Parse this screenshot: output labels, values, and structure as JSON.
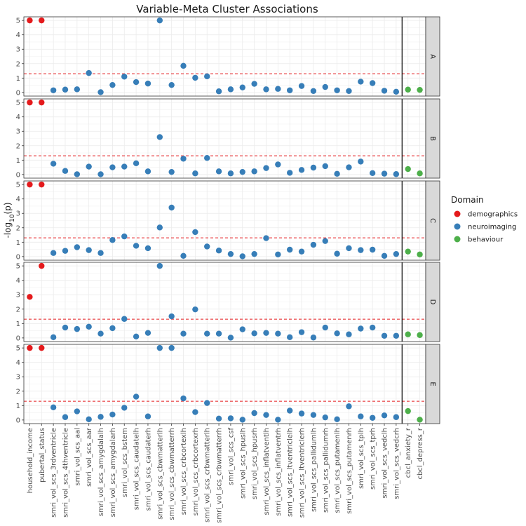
{
  "chart_data": {
    "type": "scatter",
    "title": "Variable-Meta Cluster Associations",
    "xlabel": "",
    "ylabel": "-log10(p)",
    "ylim": [
      0,
      5
    ],
    "yticks": [
      0,
      1,
      2,
      3,
      4,
      5
    ],
    "threshold": 1.3,
    "threshold_color": "#e41a1c",
    "grid": true,
    "legend": {
      "title": "Domain",
      "placement": "right",
      "entries": [
        {
          "label": "demographics",
          "color": "#e41a1c"
        },
        {
          "label": "neuroimaging",
          "color": "#377eb8"
        },
        {
          "label": "behaviour",
          "color": "#4daf4a"
        }
      ]
    },
    "divider_after_index": 32,
    "variables": [
      "household_income",
      "pubertal_status",
      "smri_vol_scs_3rdventricle",
      "smri_vol_scs_4thventricle",
      "smri_vol_scs_aal",
      "smri_vol_scs_aar",
      "smri_vol_scs_amygdalalh",
      "smri_vol_scs_amygdalarh",
      "smri_vol_scs_bstem",
      "smri_vol_scs_caudatelh",
      "smri_vol_scs_caudaterh",
      "smri_vol_scs_cbwmatterlh",
      "smri_vol_scs_cbwmatterrh",
      "smri_vol_scs_crbcortexlh",
      "smri_vol_scs_crbcortexrh",
      "smri_vol_scs_crbwmatterlh",
      "smri_vol_scs_crbwmatterrh",
      "smri_vol_scs_csf",
      "smri_vol_scs_hpuslh",
      "smri_vol_scs_hpusrh",
      "smri_vol_scs_inflatventlh",
      "smri_vol_scs_inflatventrh",
      "smri_vol_scs_ltventriclelh",
      "smri_vol_scs_ltventriclerh",
      "smri_vol_scs_pallidumlh",
      "smri_vol_scs_pallidumrh",
      "smri_vol_scs_putamenlh",
      "smri_vol_scs_putamenrh",
      "smri_vol_scs_tplh",
      "smri_vol_scs_tprh",
      "smri_vol_scs_vedclh",
      "smri_vol_scs_vedcrh",
      "cbcl_anxiety_r",
      "cbcl_depress_r"
    ],
    "domains": [
      "demographics",
      "demographics",
      "neuroimaging",
      "neuroimaging",
      "neuroimaging",
      "neuroimaging",
      "neuroimaging",
      "neuroimaging",
      "neuroimaging",
      "neuroimaging",
      "neuroimaging",
      "neuroimaging",
      "neuroimaging",
      "neuroimaging",
      "neuroimaging",
      "neuroimaging",
      "neuroimaging",
      "neuroimaging",
      "neuroimaging",
      "neuroimaging",
      "neuroimaging",
      "neuroimaging",
      "neuroimaging",
      "neuroimaging",
      "neuroimaging",
      "neuroimaging",
      "neuroimaging",
      "neuroimaging",
      "neuroimaging",
      "neuroimaging",
      "neuroimaging",
      "neuroimaging",
      "behaviour",
      "behaviour"
    ],
    "panels": [
      {
        "name": "A",
        "values": [
          5,
          5,
          0.15,
          0.2,
          0.22,
          1.35,
          0.02,
          0.52,
          1.1,
          0.72,
          0.62,
          5,
          0.52,
          1.85,
          1.02,
          1.12,
          0.08,
          0.22,
          0.35,
          0.6,
          0.22,
          0.25,
          0.15,
          0.45,
          0.1,
          0.38,
          0.15,
          0.1,
          0.75,
          0.65,
          0.12,
          0.05,
          0.2,
          0.18
        ]
      },
      {
        "name": "B",
        "values": [
          5,
          5,
          0.75,
          0.25,
          0.02,
          0.55,
          0.02,
          0.5,
          0.55,
          0.78,
          0.22,
          2.6,
          0.18,
          1.1,
          0.08,
          1.15,
          0.22,
          0.08,
          0.18,
          0.22,
          0.45,
          0.7,
          0.12,
          0.32,
          0.48,
          0.58,
          0.05,
          0.5,
          0.9,
          0.1,
          0.06,
          0.03,
          0.38,
          0.08
        ]
      },
      {
        "name": "C",
        "values": [
          5,
          5,
          0.25,
          0.4,
          0.65,
          0.45,
          0.25,
          1.15,
          1.4,
          0.75,
          0.58,
          2.02,
          3.4,
          0.05,
          1.7,
          0.7,
          0.42,
          0.18,
          0.02,
          0.18,
          1.28,
          0.15,
          0.48,
          0.35,
          0.82,
          1.08,
          0.2,
          0.58,
          0.45,
          0.48,
          0.05,
          0.18,
          0.35,
          0.15
        ]
      },
      {
        "name": "D",
        "values": [
          2.85,
          5,
          0.05,
          0.72,
          0.62,
          0.78,
          0.3,
          0.68,
          1.32,
          0.1,
          0.35,
          5,
          1.5,
          0.3,
          1.98,
          0.3,
          0.3,
          0.02,
          0.6,
          0.32,
          0.35,
          0.3,
          0.05,
          0.4,
          0.03,
          0.72,
          0.32,
          0.25,
          0.65,
          0.72,
          0.15,
          0.15,
          0.25,
          0.2
        ]
      },
      {
        "name": "E",
        "values": [
          5,
          5,
          0.88,
          0.2,
          0.6,
          0.05,
          0.22,
          0.38,
          0.85,
          1.62,
          0.25,
          5,
          5,
          1.5,
          0.55,
          1.18,
          0.1,
          0.12,
          0.02,
          0.48,
          0.35,
          0.02,
          0.65,
          0.45,
          0.35,
          0.18,
          0.05,
          0.95,
          0.25,
          0.15,
          0.32,
          0.2,
          0.62,
          0.02
        ]
      }
    ]
  }
}
